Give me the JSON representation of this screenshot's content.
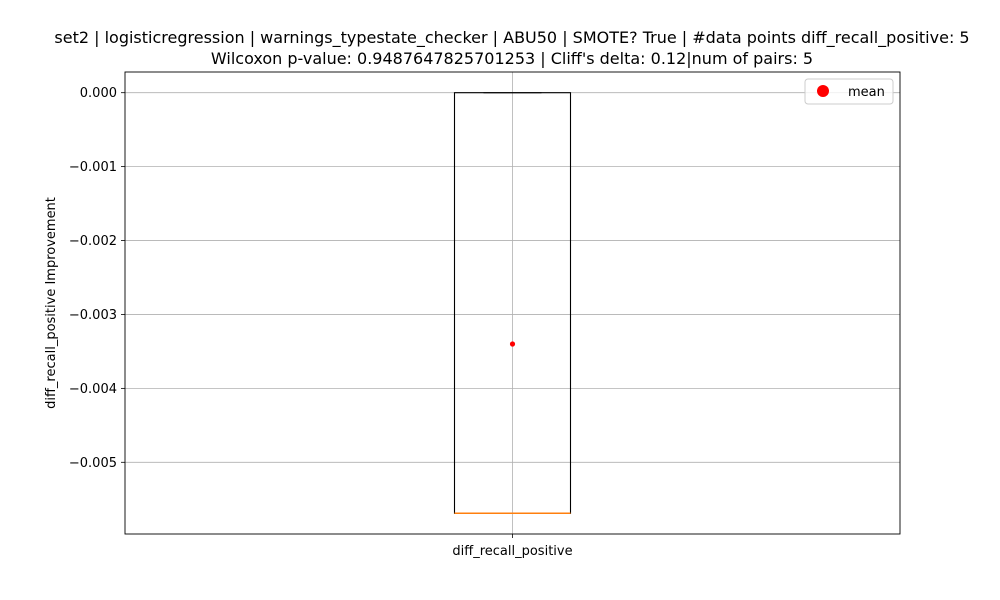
{
  "chart_data": {
    "type": "box",
    "title_line1": "set2 | logisticregression | warnings_typestate_checker | ABU50 | SMOTE? True | #data points diff_recall_positive: 5",
    "title_line2": "Wilcoxon p-value: 0.9487647825701253 | Cliff's delta: 0.12|num of pairs: 5",
    "xlabel": "",
    "ylabel": "diff_recall_positive Improvement",
    "categories": [
      "diff_recall_positive"
    ],
    "box": {
      "whisker_low": -0.00569,
      "q1": -0.00569,
      "median": -0.00569,
      "q3": 0.0,
      "whisker_high": 0.0,
      "mean": -0.0034
    },
    "ylim": [
      -0.00597,
      0.00028
    ],
    "yticks": [
      0.0,
      -0.001,
      -0.002,
      -0.003,
      -0.004,
      -0.005
    ],
    "ytick_labels": [
      "0.000",
      "−0.001",
      "−0.002",
      "−0.003",
      "−0.004",
      "−0.005"
    ],
    "grid": true,
    "legend": {
      "placement": "upper right",
      "entries": [
        "mean"
      ]
    },
    "colors": {
      "box": "#000000",
      "median": "#ff7f0e",
      "mean": "#ff0000",
      "grid": "#b0b0b0"
    }
  }
}
